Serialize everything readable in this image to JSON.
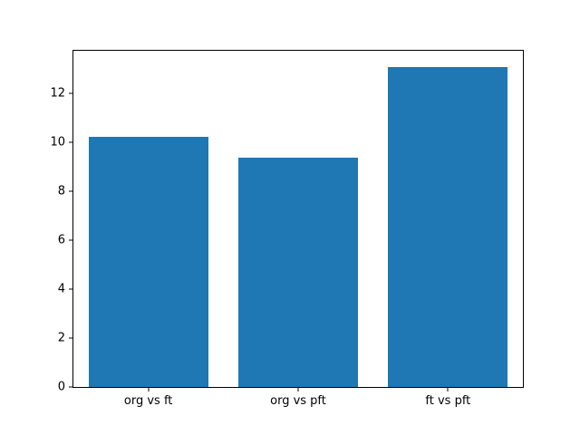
{
  "chart_data": {
    "type": "bar",
    "title": "",
    "xlabel": "",
    "ylabel": "",
    "categories": [
      "org vs ft",
      "org vs pft",
      "ft vs pft"
    ],
    "values": [
      10.2,
      9.35,
      13.05
    ],
    "yticks": [
      0,
      2,
      4,
      6,
      8,
      10,
      12
    ],
    "ytick_labels": [
      "0",
      "2",
      "4",
      "6",
      "8",
      "10",
      "12"
    ],
    "ylim": [
      0,
      13.72
    ],
    "bar_width_fraction": 0.8,
    "grid": false,
    "legend": null,
    "bar_color": "#1f77b4",
    "axis_color": "#000000",
    "text_color": "#000000",
    "background_color": "#ffffff"
  }
}
